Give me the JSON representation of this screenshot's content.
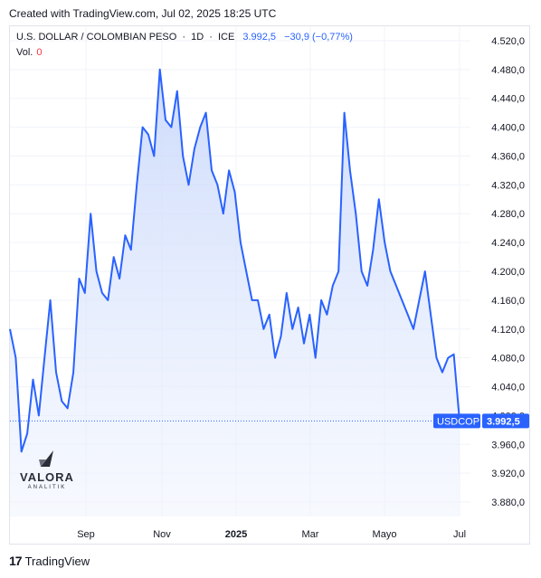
{
  "header": {
    "created_with": "Created with TradingView.com, Jul 02, 2025 18:25 UTC"
  },
  "legend": {
    "symbol": "U.S. DOLLAR / COLOMBIAN PESO",
    "interval": "1D",
    "exchange": "ICE",
    "last": "3.992,5",
    "change": "−30,9 (−0,77%)",
    "vol_label": "Vol.",
    "vol_value": "0"
  },
  "price_badge": {
    "symbol": "USDCOP",
    "value": "3.992,5"
  },
  "watermark": {
    "name": "VALORA",
    "sub": "ANALITIK"
  },
  "footer": {
    "brand": "TradingView",
    "logo": "tv-logo-icon"
  },
  "colors": {
    "line": "#2962ff",
    "area_top": "#c8d7fb",
    "area_bottom": "#eef3fd",
    "badge_dark": "#2962ff"
  },
  "chart_data": {
    "type": "area",
    "series": [
      {
        "values": [
          4120,
          4080,
          3950,
          3975,
          4050,
          4000,
          4080,
          4160,
          4060,
          4020,
          4010,
          4060,
          4190,
          4170,
          4280,
          4200,
          4170,
          4160,
          4220,
          4190,
          4250,
          4230,
          4320,
          4400,
          4390,
          4360,
          4480,
          4410,
          4400,
          4450,
          4360,
          4320,
          4370,
          4400,
          4420,
          4340,
          4320,
          4280,
          4340,
          4310,
          4240,
          4200,
          4160,
          4160,
          4120,
          4140,
          4080,
          4110,
          4170,
          4120,
          4150,
          4100,
          4140,
          4080,
          4160,
          4140,
          4180,
          4200,
          4420,
          4340,
          4280,
          4200,
          4180,
          4230,
          4300,
          4240,
          4200,
          4180,
          4160,
          4140,
          4120,
          4160,
          4200,
          4140,
          4080,
          4060,
          4080,
          4085,
          3992.5
        ]
      }
    ],
    "x_labels": [
      "Sep",
      "Nov",
      "2025",
      "Mar",
      "Mayo",
      "Jul"
    ],
    "y_ticks": [
      "4.520,0",
      "4.480,0",
      "4.440,0",
      "4.400,0",
      "4.360,0",
      "4.320,0",
      "4.280,0",
      "4.240,0",
      "4.200,0",
      "4.160,0",
      "4.120,0",
      "4.080,0",
      "4.040,0",
      "4.000,0",
      "3.960,0",
      "3.920,0",
      "3.880,0"
    ],
    "y_tick_values": [
      4520,
      4480,
      4440,
      4400,
      4360,
      4320,
      4280,
      4240,
      4200,
      4160,
      4120,
      4080,
      4040,
      4000,
      3960,
      3920,
      3880
    ],
    "ylim": [
      3860,
      4540
    ],
    "last_value": 3992.5,
    "grid": true
  }
}
